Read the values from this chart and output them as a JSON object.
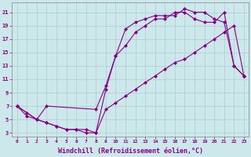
{
  "background_color": "#cce8ea",
  "grid_color": "#aacdd4",
  "line_color": "#880088",
  "marker": "D",
  "marker_size": 2.0,
  "line_width": 0.8,
  "xlabel": "Windchill (Refroidissement éolien,°C)",
  "xlabel_fontsize": 6,
  "ylabel_ticks": [
    3,
    5,
    7,
    9,
    11,
    13,
    15,
    17,
    19,
    21
  ],
  "xtick_labels": [
    "0",
    "1",
    "2",
    "3",
    "4",
    "5",
    "6",
    "7",
    "8",
    "9",
    "10",
    "11",
    "12",
    "13",
    "14",
    "15",
    "16",
    "17",
    "18",
    "19",
    "20",
    "21",
    "22",
    "23"
  ],
  "xlim": [
    -0.5,
    23.5
  ],
  "ylim": [
    2.5,
    22.5
  ],
  "series": [
    {
      "x": [
        0,
        1,
        2,
        3,
        4,
        5,
        6,
        7,
        8,
        9,
        10,
        11,
        12,
        13,
        14,
        15,
        16,
        17,
        18,
        19,
        20,
        21,
        22,
        23
      ],
      "y": [
        7,
        6,
        5,
        4.5,
        4,
        3.5,
        3.5,
        3.5,
        3,
        9.5,
        14.5,
        18.5,
        19.5,
        20,
        20.5,
        20.5,
        20.5,
        21.5,
        21,
        21,
        20,
        19.5,
        13,
        11.5
      ]
    },
    {
      "x": [
        0,
        2,
        3,
        8,
        9,
        10,
        11,
        12,
        13,
        14,
        15,
        16,
        17,
        18,
        19,
        20,
        21,
        22,
        23
      ],
      "y": [
        7,
        5,
        7,
        6.5,
        10,
        14.5,
        16,
        18,
        19,
        20,
        20,
        21,
        21,
        20,
        19.5,
        19.5,
        21,
        13,
        11.5
      ]
    },
    {
      "x": [
        0,
        1,
        2,
        3,
        4,
        5,
        6,
        7,
        8,
        9,
        10,
        11,
        12,
        13,
        14,
        15,
        16,
        17,
        18,
        19,
        20,
        21,
        22,
        23
      ],
      "y": [
        7,
        5.5,
        5,
        4.5,
        4,
        3.5,
        3.5,
        3,
        3,
        6.5,
        7.5,
        8.5,
        9.5,
        10.5,
        11.5,
        12.5,
        13.5,
        14,
        15,
        16,
        17,
        18,
        19,
        11.5
      ]
    }
  ]
}
